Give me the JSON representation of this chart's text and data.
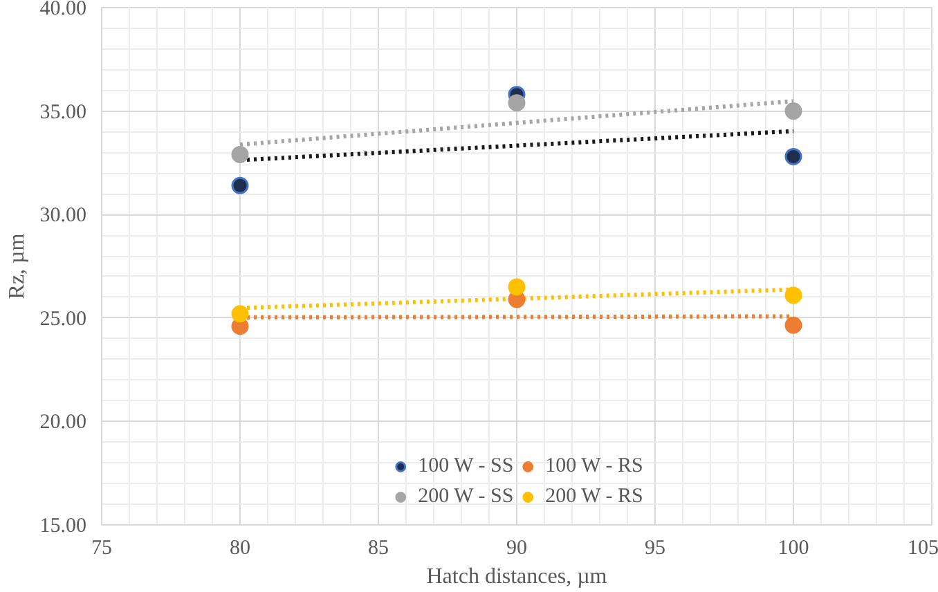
{
  "chart_data": {
    "type": "scatter",
    "xlabel": "Hatch distances, µm",
    "ylabel": "Rz, µm",
    "x": [
      80,
      90,
      100
    ],
    "series": [
      {
        "name": "100 W - SS",
        "color": "#1f2d4e",
        "values": [
          31.4,
          35.8,
          32.8
        ]
      },
      {
        "name": "100 W - RS",
        "color": "#ed7d31",
        "values": [
          24.6,
          25.9,
          24.65
        ]
      },
      {
        "name": "200 W - SS",
        "color": "#a5a5a5",
        "values": [
          32.9,
          35.4,
          35.0
        ]
      },
      {
        "name": "200 W - RS",
        "color": "#ffc000",
        "values": [
          25.2,
          26.5,
          26.1
        ]
      },
      {
        "type": "line",
        "marker": "none",
        "line_style": "dotted",
        "color": "#1a1a1a",
        "values": [
          32.63,
          33.33,
          34.03
        ]
      },
      {
        "type": "line",
        "marker": "none",
        "line_style": "dotted",
        "color": "#ed7d31",
        "values": [
          25.03,
          25.05,
          25.08
        ]
      },
      {
        "type": "line",
        "marker": "none",
        "line_style": "dotted",
        "color": "#a5a5a5",
        "values": [
          33.38,
          34.43,
          35.48
        ]
      },
      {
        "type": "line",
        "marker": "none",
        "line_style": "dotted",
        "color": "#ffc000",
        "values": [
          25.48,
          25.93,
          26.38
        ]
      }
    ],
    "xlim": [
      75,
      105
    ],
    "xticks": [
      75,
      80,
      85,
      90,
      95,
      100,
      105
    ],
    "ylim": [
      15,
      40
    ],
    "yticks": [
      {
        "value": 15,
        "label": "15.00"
      },
      {
        "value": 20,
        "label": "20.00"
      },
      {
        "value": 25,
        "label": "25.00"
      },
      {
        "value": 30,
        "label": "30.00"
      },
      {
        "value": 35,
        "label": "35.00"
      },
      {
        "value": 40,
        "label": "40.00"
      }
    ],
    "grid": true,
    "legend": "bottom",
    "marker": "circle"
  }
}
